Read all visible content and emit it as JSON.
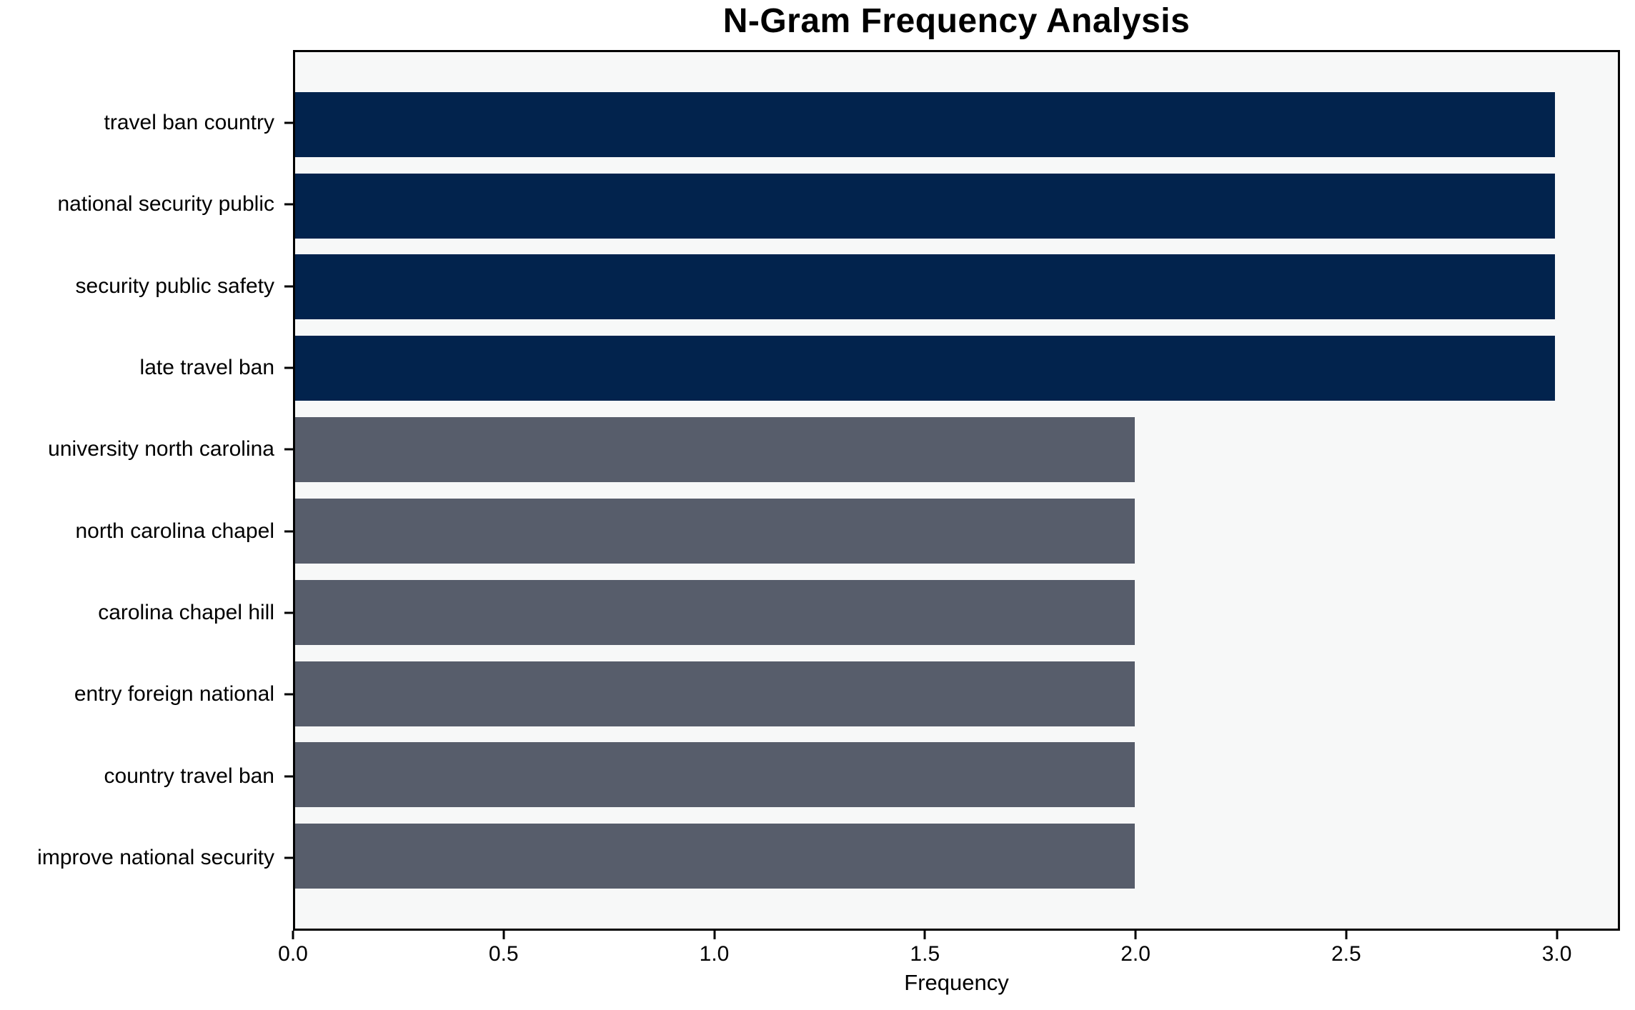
{
  "chart_data": {
    "type": "bar",
    "orientation": "horizontal",
    "title": "N-Gram Frequency Analysis",
    "xlabel": "Frequency",
    "ylabel": "",
    "categories": [
      "travel ban country",
      "national security public",
      "security public safety",
      "late travel ban",
      "university north carolina",
      "north carolina chapel",
      "carolina chapel hill",
      "entry foreign national",
      "country travel ban",
      "improve national security"
    ],
    "values": [
      3,
      3,
      3,
      3,
      2,
      2,
      2,
      2,
      2,
      2
    ],
    "colors_per_bar": [
      "#02234D",
      "#02234D",
      "#02234D",
      "#02234D",
      "#575D6B",
      "#575D6B",
      "#575D6B",
      "#575D6B",
      "#575D6B",
      "#575D6B"
    ],
    "xlim": [
      0,
      3.15
    ],
    "xticks": [
      0,
      0.5,
      1,
      1.5,
      2,
      2.5,
      3
    ],
    "xtick_labels": [
      "0.0",
      "0.5",
      "1.0",
      "1.5",
      "2.0",
      "2.5",
      "3.0"
    ],
    "plot_background": "#F7F8F8",
    "figure_background": "#FFFFFF",
    "grid": false,
    "legend": null
  }
}
